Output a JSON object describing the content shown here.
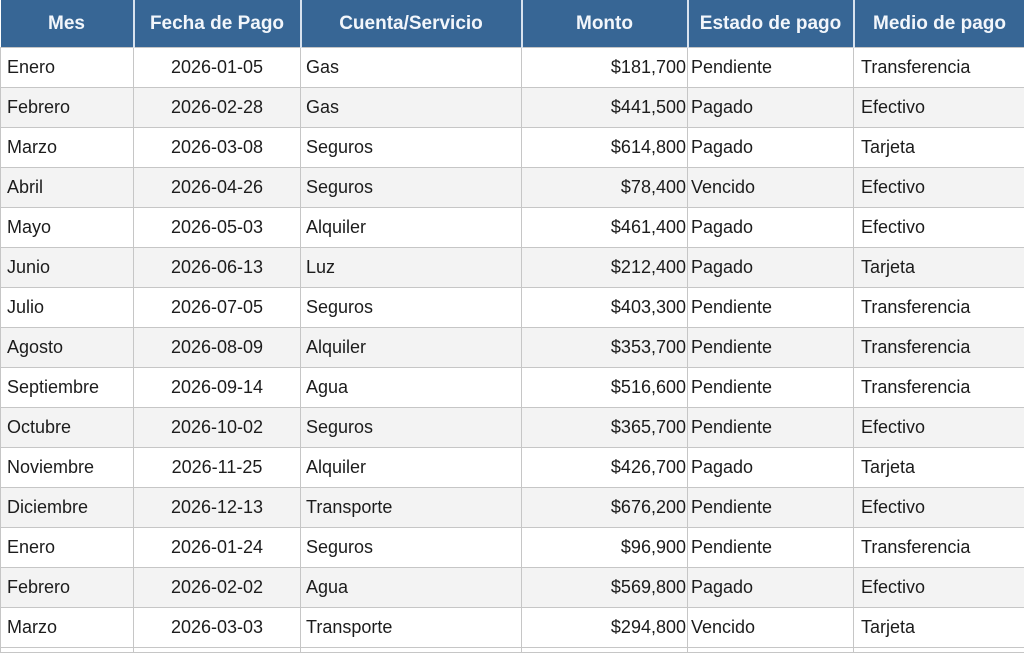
{
  "chart_data": {
    "type": "table",
    "title": "",
    "columns": [
      {
        "key": "mes",
        "label": "Mes"
      },
      {
        "key": "fecha",
        "label": "Fecha de Pago"
      },
      {
        "key": "cuenta",
        "label": "Cuenta/Servicio"
      },
      {
        "key": "monto",
        "label": "Monto"
      },
      {
        "key": "estado",
        "label": "Estado de pago"
      },
      {
        "key": "medio",
        "label": "Medio de pago"
      }
    ],
    "rows": [
      {
        "mes": "Enero",
        "fecha": "2026-01-05",
        "cuenta": "Gas",
        "monto": "$181,700",
        "estado": "Pendiente",
        "medio": "Transferencia"
      },
      {
        "mes": "Febrero",
        "fecha": "2026-02-28",
        "cuenta": "Gas",
        "monto": "$441,500",
        "estado": "Pagado",
        "medio": "Efectivo"
      },
      {
        "mes": "Marzo",
        "fecha": "2026-03-08",
        "cuenta": "Seguros",
        "monto": "$614,800",
        "estado": "Pagado",
        "medio": "Tarjeta"
      },
      {
        "mes": "Abril",
        "fecha": "2026-04-26",
        "cuenta": "Seguros",
        "monto": "$78,400",
        "estado": "Vencido",
        "medio": "Efectivo"
      },
      {
        "mes": "Mayo",
        "fecha": "2026-05-03",
        "cuenta": "Alquiler",
        "monto": "$461,400",
        "estado": "Pagado",
        "medio": "Efectivo"
      },
      {
        "mes": "Junio",
        "fecha": "2026-06-13",
        "cuenta": "Luz",
        "monto": "$212,400",
        "estado": "Pagado",
        "medio": "Tarjeta"
      },
      {
        "mes": "Julio",
        "fecha": "2026-07-05",
        "cuenta": "Seguros",
        "monto": "$403,300",
        "estado": "Pendiente",
        "medio": "Transferencia"
      },
      {
        "mes": "Agosto",
        "fecha": "2026-08-09",
        "cuenta": "Alquiler",
        "monto": "$353,700",
        "estado": "Pendiente",
        "medio": "Transferencia"
      },
      {
        "mes": "Septiembre",
        "fecha": "2026-09-14",
        "cuenta": "Agua",
        "monto": "$516,600",
        "estado": "Pendiente",
        "medio": "Transferencia"
      },
      {
        "mes": "Octubre",
        "fecha": "2026-10-02",
        "cuenta": "Seguros",
        "monto": "$365,700",
        "estado": "Pendiente",
        "medio": "Efectivo"
      },
      {
        "mes": "Noviembre",
        "fecha": "2026-11-25",
        "cuenta": "Alquiler",
        "monto": "$426,700",
        "estado": "Pagado",
        "medio": "Tarjeta"
      },
      {
        "mes": "Diciembre",
        "fecha": "2026-12-13",
        "cuenta": "Transporte",
        "monto": "$676,200",
        "estado": "Pendiente",
        "medio": "Efectivo"
      },
      {
        "mes": "Enero",
        "fecha": "2026-01-24",
        "cuenta": "Seguros",
        "monto": "$96,900",
        "estado": "Pendiente",
        "medio": "Transferencia"
      },
      {
        "mes": "Febrero",
        "fecha": "2026-02-02",
        "cuenta": "Agua",
        "monto": "$569,800",
        "estado": "Pagado",
        "medio": "Efectivo"
      },
      {
        "mes": "Marzo",
        "fecha": "2026-03-03",
        "cuenta": "Transporte",
        "monto": "$294,800",
        "estado": "Vencido",
        "medio": "Tarjeta"
      }
    ]
  },
  "colors": {
    "header_bg": "#376695",
    "header_text": "#f2f6fb",
    "header_divider": "#d8e2ee",
    "grid_line": "#c6c6c6",
    "row_alt_bg": "#f3f3f3",
    "row_bg": "#ffffff",
    "text": "#1c1c1c"
  }
}
